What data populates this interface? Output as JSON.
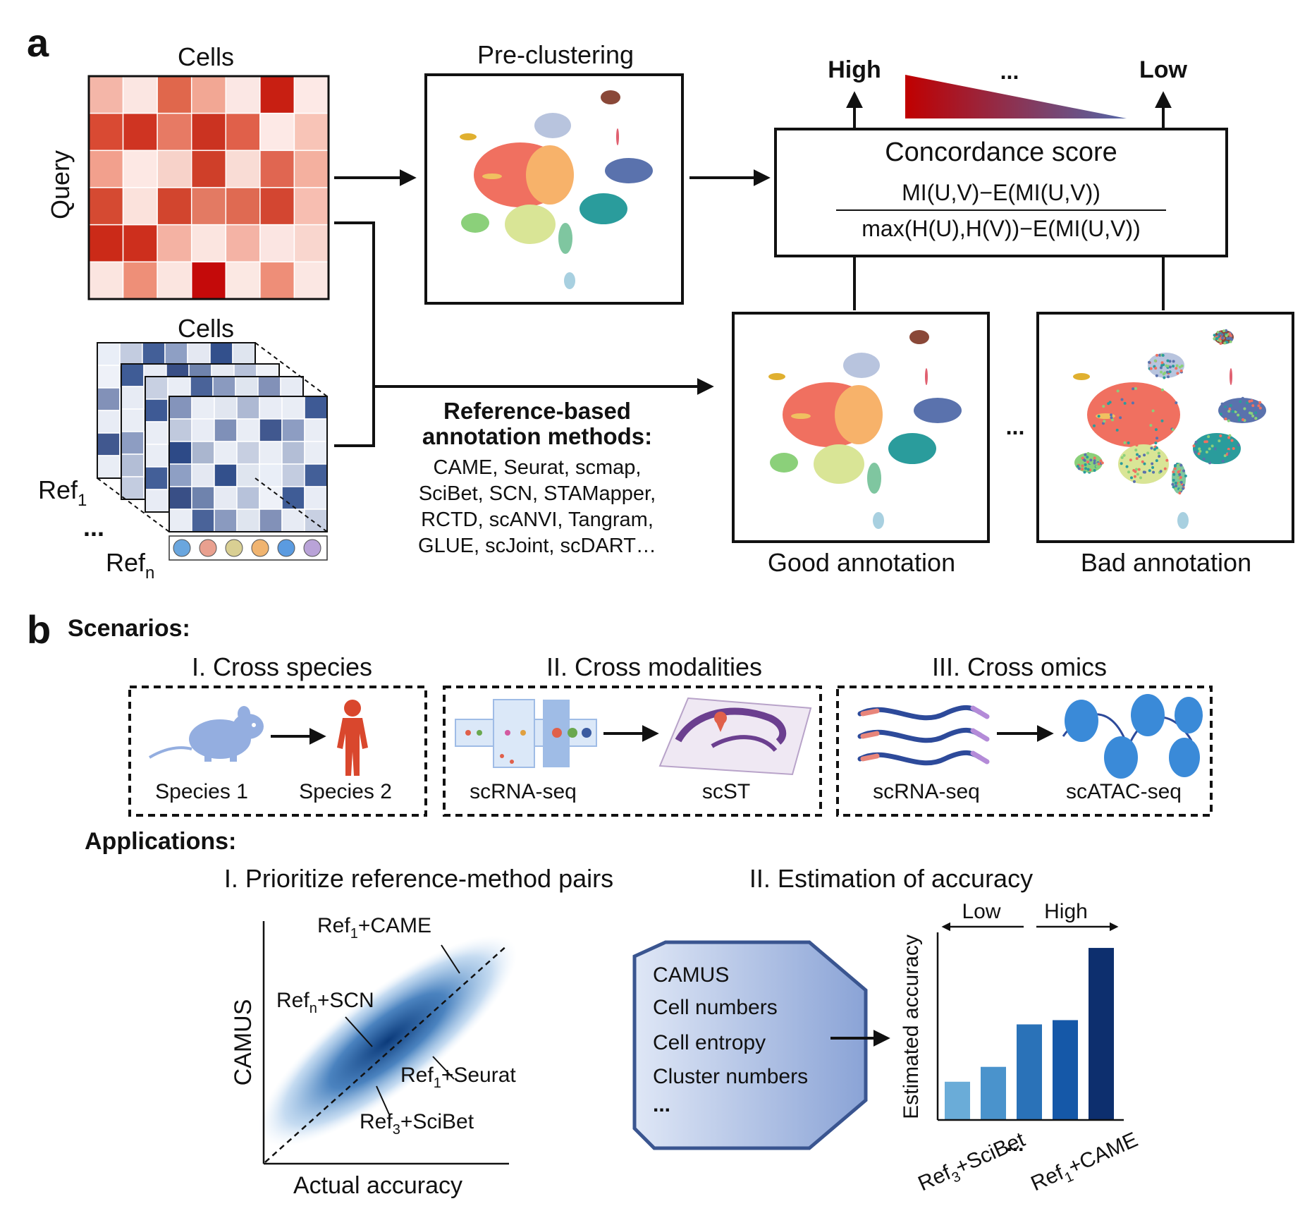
{
  "panels": {
    "a": "a",
    "b": "b"
  },
  "query_matrix": {
    "top_label": "Cells",
    "side_label": "Query",
    "colors": [
      [
        "#f4b6a8",
        "#fbe6e2",
        "#e0674c",
        "#f2a794",
        "#fbe7e4",
        "#c81f12",
        "#fde9e6"
      ],
      [
        "#d94a33",
        "#cf3422",
        "#e77a64",
        "#cb3321",
        "#e0604a",
        "#fde9e6",
        "#f8c4b7"
      ],
      [
        "#f2a08d",
        "#fde8e4",
        "#f7d2c9",
        "#cf3f29",
        "#f9dcd5",
        "#e06651",
        "#f4b09f"
      ],
      [
        "#d54a32",
        "#fbe2dc",
        "#d2452e",
        "#e37a63",
        "#df6a52",
        "#d34631",
        "#f7beb1"
      ],
      [
        "#cb2a18",
        "#cd2f1d",
        "#f4b2a3",
        "#fbe5e0",
        "#f4b3a5",
        "#fbe5e2",
        "#f9d6ce"
      ],
      [
        "#fbe5e0",
        "#ee8f78",
        "#fbe5e0",
        "#c40a0a",
        "#fbe8e3",
        "#ee8e78",
        "#fbe7e3"
      ]
    ]
  },
  "reference_stack": {
    "top_label": "Cells",
    "ref_first": "Ref",
    "ref_first_sub": "1",
    "ellipsis": "...",
    "ref_last": "Ref",
    "ref_last_sub": "n",
    "colors": [
      [
        "#e9eef7",
        "#c3cce0",
        "#435f98",
        "#8e9fc4",
        "#e4e8f2",
        "#33508c",
        "#dfe5ef"
      ],
      [
        "#eef1f8",
        "#3f5c96",
        "#e8ecf5",
        "#394f86",
        "#6f83ad",
        "#e6eaf3",
        "#b7c2da"
      ],
      [
        "#8291b8",
        "#e7ebf4",
        "#c8d0e2",
        "#e9edf5",
        "#4a6399",
        "#8a9abf",
        "#dfe5ef"
      ],
      [
        "#e8ecf5",
        "#e9edf5",
        "#3e5a95",
        "#8494bb",
        "#e9edf5",
        "#e1e6f0",
        "#aeb9d3"
      ],
      [
        "#41588f",
        "#8d9dc2",
        "#e9edf5",
        "#c0c9dd",
        "#e8ecf5",
        "#7f90b8",
        "#e9edf5"
      ],
      [
        "#e9edf5",
        "#b3bed6",
        "#e9edf5",
        "#2d4a87",
        "#aab6cf",
        "#e9edf5",
        "#c7cfe1"
      ]
    ],
    "cell_icon_colors": [
      "#6aa6de",
      "#e9a08f",
      "#d9cf93",
      "#f0b470",
      "#5b9be0",
      "#b9a3d8"
    ]
  },
  "preclustering": {
    "title": "Pre-clustering"
  },
  "concordance": {
    "title": "Concordance score",
    "numerator": "MI(U,V)−E(MI(U,V))",
    "denominator": "max(H(U),H(V))−E(MI(U,V))",
    "high": "High",
    "low": "Low",
    "ellipsis": "...",
    "high_color": "#c00000",
    "low_color": "#5567a8"
  },
  "methods": {
    "heading_line1": "Reference-based",
    "heading_line2": "annotation methods:",
    "lines": [
      "CAME, Seurat, scmap,",
      "SciBet, SCN, STAMapper,",
      "RCTD, scANVI, Tangram,",
      "GLUE, scJoint, scDART…"
    ]
  },
  "annotations": {
    "good": "Good annotation",
    "bad": "Bad annotation",
    "ellipsis": "..."
  },
  "scenarios": {
    "title": "Scenarios:",
    "items": [
      {
        "title": "I. Cross species",
        "from": "Species 1",
        "to": "Species 2"
      },
      {
        "title": "II. Cross modalities",
        "from": "scRNA-seq",
        "to": "scST"
      },
      {
        "title": "III. Cross omics",
        "from": "scRNA-seq",
        "to": "scATAC-seq"
      }
    ]
  },
  "applications": {
    "title": "Applications:",
    "app1": {
      "title": "I. Prioritize reference-method pairs",
      "ylabel": "CAMUS",
      "xlabel": "Actual accuracy",
      "labels": [
        {
          "base": "Ref",
          "sub": "1",
          "rest": "+CAME"
        },
        {
          "base": "Ref",
          "sub": "n",
          "rest": "+SCN"
        },
        {
          "base": "Ref",
          "sub": "1",
          "rest": "+Seurat"
        },
        {
          "base": "Ref",
          "sub": "3",
          "rest": "+SciBet"
        }
      ]
    },
    "app2": {
      "title": "II.  Estimation of accuracy",
      "features": [
        "CAMUS",
        "Cell numbers",
        "Cell entropy",
        "Cluster numbers",
        "..."
      ],
      "low": "Low",
      "high": "High",
      "ylabel": "Estimated accuracy",
      "x_first": {
        "base": "Ref",
        "sub": "3",
        "rest": "+SciBet"
      },
      "x_mid": "...",
      "x_last": {
        "base": "Ref",
        "sub": "1",
        "rest": "+CAME"
      }
    }
  },
  "chart_data": {
    "type": "bar",
    "ylabel": "Estimated accuracy",
    "values": [
      0.18,
      0.25,
      0.45,
      0.47,
      0.81
    ],
    "ylim": [
      0,
      0.85
    ],
    "colors": [
      "#6aacd8",
      "#4a93cc",
      "#2a72b8",
      "#1558a8",
      "#0d2f6e"
    ]
  }
}
